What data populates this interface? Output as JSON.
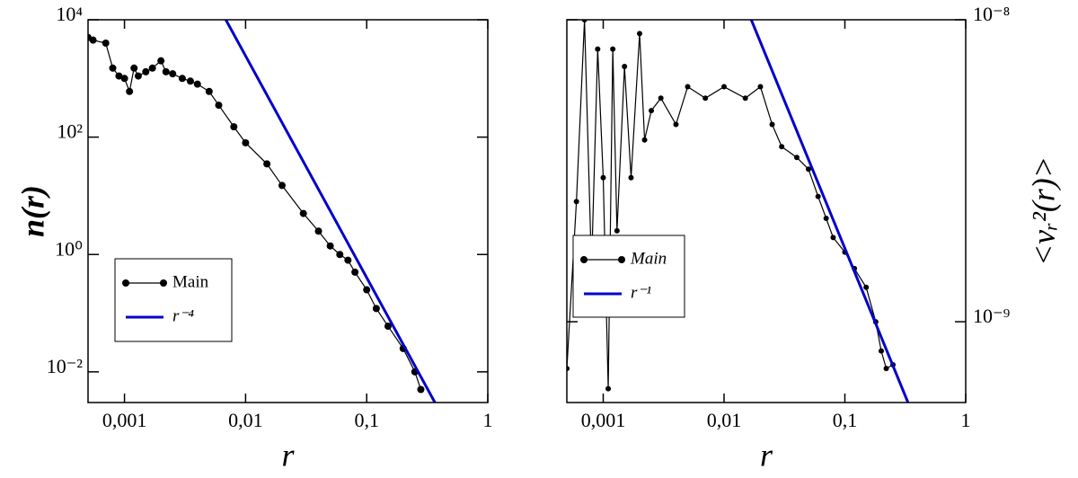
{
  "chart_data": [
    {
      "type": "line",
      "xlabel": "r",
      "ylabel": "n(r)",
      "xscale": "log",
      "yscale": "log",
      "yaxis_side": "left",
      "legend": "lower left",
      "xlim": [
        0.0005,
        1
      ],
      "ylim": [
        0.003,
        10000
      ],
      "xticks": [
        {
          "value": 0.001,
          "label": "0,001"
        },
        {
          "value": 0.01,
          "label": "0,01"
        },
        {
          "value": 0.1,
          "label": "0,1"
        },
        1
      ],
      "yticks": [
        {
          "value": 0.01,
          "label": "10⁻²"
        },
        {
          "value": 1,
          "label": "10⁰"
        },
        {
          "value": 100,
          "label": "10²"
        },
        {
          "value": 10000,
          "label": "10⁴"
        }
      ],
      "series": [
        {
          "name": "Main",
          "color": "#000000",
          "marker": true,
          "x": [
            0.0005,
            0.00055,
            0.0007,
            0.0008,
            0.0009,
            0.001,
            0.0011,
            0.0012,
            0.0013,
            0.0015,
            0.0017,
            0.002,
            0.0022,
            0.0025,
            0.003,
            0.0035,
            0.004,
            0.005,
            0.006,
            0.008,
            0.01,
            0.015,
            0.02,
            0.03,
            0.04,
            0.05,
            0.06,
            0.07,
            0.08,
            0.1,
            0.12,
            0.15,
            0.2,
            0.25,
            0.28
          ],
          "values": [
            5000,
            4500,
            4000,
            1500,
            1100,
            1000,
            600,
            1500,
            1100,
            1300,
            1500,
            2000,
            1300,
            1200,
            1000,
            900,
            800,
            600,
            350,
            150,
            80,
            35,
            15,
            5,
            2.5,
            1.4,
            1,
            0.8,
            0.5,
            0.25,
            0.12,
            0.06,
            0.025,
            0.01,
            0.005
          ]
        },
        {
          "name": "r⁻⁴",
          "color": "#0000cc",
          "marker": false,
          "x": [
            0.00687,
            0.366
          ],
          "values": [
            10000,
            0.003
          ]
        }
      ]
    },
    {
      "type": "line",
      "xlabel": "r",
      "ylabel": "<vᵣ²(r)>",
      "xscale": "log",
      "yscale": "log",
      "yaxis_side": "right",
      "legend": "center left",
      "xlim": [
        0.0005,
        1
      ],
      "ylim": [
        5.4e-10,
        1e-08
      ],
      "xticks": [
        {
          "value": 0.001,
          "label": "0,001"
        },
        {
          "value": 0.01,
          "label": "0,01"
        },
        {
          "value": 0.1,
          "label": "0,1"
        },
        1
      ],
      "yticks": [
        {
          "value": 1e-09,
          "label": "10⁻⁹"
        },
        {
          "value": 1e-08,
          "label": "10⁻⁸"
        }
      ],
      "series": [
        {
          "name": "Main",
          "color": "#000000",
          "marker": true,
          "x": [
            0.0005,
            0.0006,
            0.0007,
            0.0008,
            0.0009,
            0.001,
            0.0011,
            0.0012,
            0.0013,
            0.0015,
            0.0017,
            0.002,
            0.0022,
            0.0025,
            0.003,
            0.004,
            0.005,
            0.007,
            0.01,
            0.015,
            0.02,
            0.025,
            0.03,
            0.04,
            0.05,
            0.06,
            0.07,
            0.08,
            0.1,
            0.12,
            0.15,
            0.18,
            0.2,
            0.22,
            0.25
          ],
          "values": [
            7e-10,
            2.5e-09,
            1e-08,
            1.5e-09,
            8e-09,
            3e-09,
            6e-10,
            8e-09,
            2e-09,
            7e-09,
            3e-09,
            9e-09,
            4e-09,
            5e-09,
            5.5e-09,
            4.5e-09,
            6e-09,
            5.5e-09,
            6e-09,
            5.5e-09,
            6e-09,
            4.5e-09,
            3.8e-09,
            3.5e-09,
            3.2e-09,
            2.6e-09,
            2.2e-09,
            1.9e-09,
            1.7e-09,
            1.5e-09,
            1.3e-09,
            1e-09,
            8e-10,
            7e-10,
            7.2e-10
          ]
        },
        {
          "name": "r⁻¹",
          "color": "#0000cc",
          "marker": false,
          "x": [
            0.0168,
            0.333
          ],
          "values": [
            1e-08,
            5.4e-10
          ]
        }
      ]
    }
  ]
}
